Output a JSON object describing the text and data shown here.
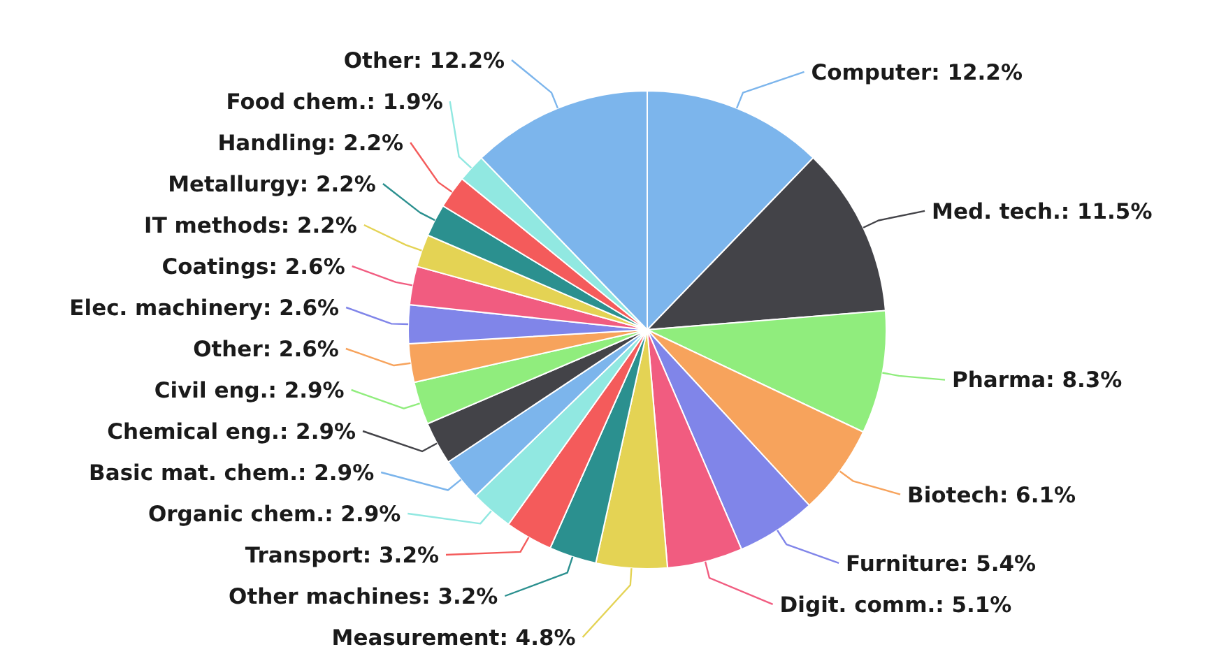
{
  "chart_data": {
    "type": "pie",
    "categories": [
      "Computer",
      "Med. tech.",
      "Pharma",
      "Biotech",
      "Furniture",
      "Digit. comm.",
      "Measurement",
      "Other machines",
      "Transport",
      "Organic chem.",
      "Basic mat. chem.",
      "Chemical eng.",
      "Civil eng.",
      "Other",
      "Elec. machinery",
      "Coatings",
      "IT methods",
      "Metallurgy",
      "Handling",
      "Food chem.",
      "Other"
    ],
    "values": [
      12.2,
      11.5,
      8.3,
      6.1,
      5.4,
      5.1,
      4.8,
      3.2,
      3.2,
      2.9,
      2.9,
      2.9,
      2.9,
      2.6,
      2.6,
      2.6,
      2.2,
      2.2,
      2.2,
      1.9,
      12.2
    ],
    "value_labels": [
      "12.2%",
      "11.5%",
      "8.3%",
      "6.1%",
      "5.4%",
      "5.1%",
      "4.8%",
      "3.2%",
      "3.2%",
      "2.9%",
      "2.9%",
      "2.9%",
      "2.9%",
      "2.6%",
      "2.6%",
      "2.6%",
      "2.2%",
      "2.2%",
      "2.2%",
      "1.9%",
      "12.2%"
    ],
    "colors": [
      "#7cb5ec",
      "#434348",
      "#90ed7d",
      "#f7a35c",
      "#8085e9",
      "#f15c80",
      "#e4d354",
      "#2b908f",
      "#f45b5b",
      "#91e8e1",
      "#7cb5ec",
      "#434348",
      "#90ed7d",
      "#f7a35c",
      "#8085e9",
      "#f15c80",
      "#e4d354",
      "#2b908f",
      "#f45b5b",
      "#91e8e1",
      "#7cb5ec"
    ]
  }
}
